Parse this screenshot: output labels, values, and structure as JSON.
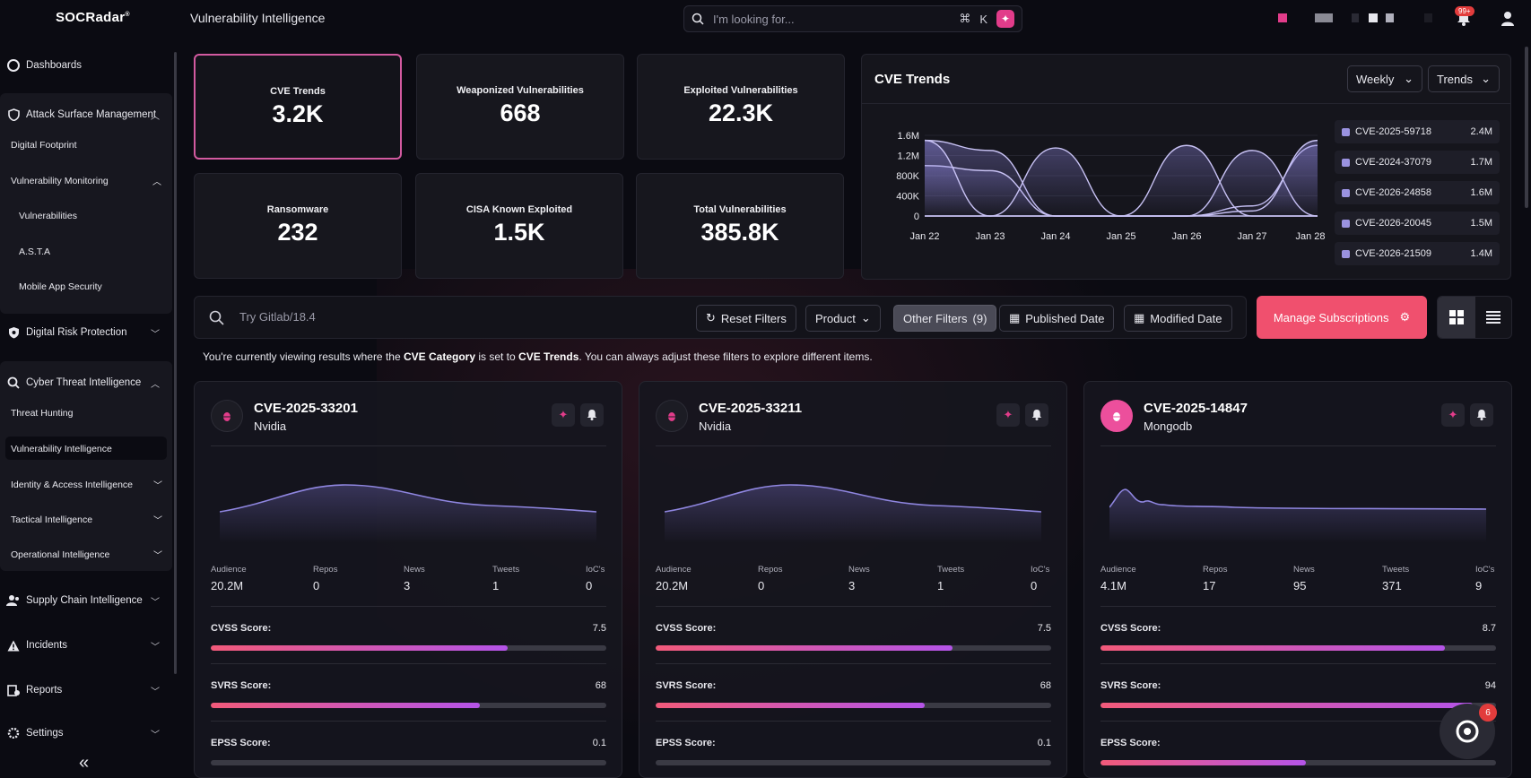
{
  "header": {
    "logo": "SOCRadar",
    "logo_mark": "®",
    "title": "Vulnerability Intelligence",
    "search_placeholder": "I'm looking for...",
    "shortcut_cmd": "⌘",
    "shortcut_key": "K",
    "notification_badge": "99+"
  },
  "sidebar": {
    "items": [
      {
        "label": "Dashboards"
      },
      {
        "label": "Attack Surface Management"
      },
      {
        "label": "Digital Footprint"
      },
      {
        "label": "Vulnerability Monitoring"
      },
      {
        "label": "Vulnerabilities"
      },
      {
        "label": "A.S.T.A"
      },
      {
        "label": "Mobile App Security"
      },
      {
        "label": "Digital Risk Protection"
      },
      {
        "label": "Cyber Threat Intelligence"
      },
      {
        "label": "Threat Hunting"
      },
      {
        "label": "Vulnerability Intelligence"
      },
      {
        "label": "Identity & Access Intelligence"
      },
      {
        "label": "Tactical Intelligence"
      },
      {
        "label": "Operational Intelligence"
      },
      {
        "label": "Supply Chain Intelligence"
      },
      {
        "label": "Incidents"
      },
      {
        "label": "Reports"
      },
      {
        "label": "Settings"
      }
    ],
    "collapse_glyph": "«"
  },
  "stats": [
    {
      "label": "CVE Trends",
      "value": "3.2K"
    },
    {
      "label": "Weaponized Vulnerabilities",
      "value": "668"
    },
    {
      "label": "Exploited Vulnerabilities",
      "value": "22.3K"
    },
    {
      "label": "Ransomware",
      "value": "232"
    },
    {
      "label": "CISA Known Exploited",
      "value": "1.5K"
    },
    {
      "label": "Total Vulnerabilities",
      "value": "385.8K"
    }
  ],
  "trends": {
    "title": "CVE Trends",
    "period": "Weekly",
    "mode": "Trends",
    "legend": [
      {
        "label": "CVE-2025-59718",
        "value": "2.4M"
      },
      {
        "label": "CVE-2024-37079",
        "value": "1.7M"
      },
      {
        "label": "CVE-2026-24858",
        "value": "1.6M"
      },
      {
        "label": "CVE-2026-20045",
        "value": "1.5M"
      },
      {
        "label": "CVE-2026-21509",
        "value": "1.4M"
      }
    ]
  },
  "chart_data": {
    "type": "area",
    "x": [
      "Jan 22",
      "Jan 23",
      "Jan 24",
      "Jan 25",
      "Jan 26",
      "Jan 27",
      "Jan 28"
    ],
    "yticks": [
      "1.6M",
      "1.2M",
      "800K",
      "400K",
      "0"
    ],
    "ylim": [
      0,
      1600000
    ],
    "grid": true,
    "series": [
      {
        "name": "CVE-2025-59718",
        "values": [
          1500000,
          1300000,
          0,
          0,
          0,
          200000,
          1400000
        ]
      },
      {
        "name": "CVE-2024-37079",
        "values": [
          1000000,
          900000,
          0,
          0,
          0,
          1300000,
          0
        ]
      },
      {
        "name": "CVE-2026-24858",
        "values": [
          1500000,
          0,
          0,
          0,
          0,
          100000,
          1500000
        ]
      },
      {
        "name": "CVE-2026-20045",
        "values": [
          0,
          0,
          1350000,
          0,
          0,
          0,
          0
        ]
      },
      {
        "name": "CVE-2026-21509",
        "values": [
          0,
          0,
          0,
          0,
          1400000,
          0,
          0
        ]
      }
    ]
  },
  "filters": {
    "search_placeholder": "Try Gitlab/18.4",
    "reset": "Reset Filters",
    "product": "Product",
    "other": "Other Filters",
    "other_count": "(9)",
    "published": "Published Date",
    "modified": "Modified Date",
    "manage": "Manage Subscriptions"
  },
  "info": {
    "prefix": "You're currently viewing results where the ",
    "category_label": "CVE Category",
    "mid": " is set to ",
    "category_value": "CVE Trends",
    "suffix": ". You can always adjust these filters to explore different items."
  },
  "cards": [
    {
      "id": "CVE-2025-33201",
      "vendor": "Nvidia",
      "metrics": [
        {
          "label": "Audience",
          "value": "20.2M"
        },
        {
          "label": "Repos",
          "value": "0"
        },
        {
          "label": "News",
          "value": "3"
        },
        {
          "label": "Tweets",
          "value": "1"
        },
        {
          "label": "IoC's",
          "value": "0"
        }
      ],
      "scores": [
        {
          "label": "CVSS Score:",
          "value": "7.5",
          "fill": 0.75
        },
        {
          "label": "SVRS Score:",
          "value": "68",
          "fill": 0.68
        },
        {
          "label": "EPSS Score:",
          "value": "0.1",
          "fill": 0.0
        }
      ]
    },
    {
      "id": "CVE-2025-33211",
      "vendor": "Nvidia",
      "metrics": [
        {
          "label": "Audience",
          "value": "20.2M"
        },
        {
          "label": "Repos",
          "value": "0"
        },
        {
          "label": "News",
          "value": "3"
        },
        {
          "label": "Tweets",
          "value": "1"
        },
        {
          "label": "IoC's",
          "value": "0"
        }
      ],
      "scores": [
        {
          "label": "CVSS Score:",
          "value": "7.5",
          "fill": 0.75
        },
        {
          "label": "SVRS Score:",
          "value": "68",
          "fill": 0.68
        },
        {
          "label": "EPSS Score:",
          "value": "0.1",
          "fill": 0.0
        }
      ]
    },
    {
      "id": "CVE-2025-14847",
      "vendor": "Mongodb",
      "metrics": [
        {
          "label": "Audience",
          "value": "4.1M"
        },
        {
          "label": "Repos",
          "value": "17"
        },
        {
          "label": "News",
          "value": "95"
        },
        {
          "label": "Tweets",
          "value": "371"
        },
        {
          "label": "IoC's",
          "value": "9"
        }
      ],
      "scores": [
        {
          "label": "CVSS Score:",
          "value": "8.7",
          "fill": 0.87
        },
        {
          "label": "SVRS Score:",
          "value": "94",
          "fill": 0.94
        },
        {
          "label": "EPSS Score:",
          "value": "",
          "fill": 0.52
        }
      ]
    }
  ],
  "chatbot_badge": "6",
  "colors": {
    "accent": "#f0506e",
    "pink": "#e23c8a",
    "series": "#9a92e0"
  }
}
